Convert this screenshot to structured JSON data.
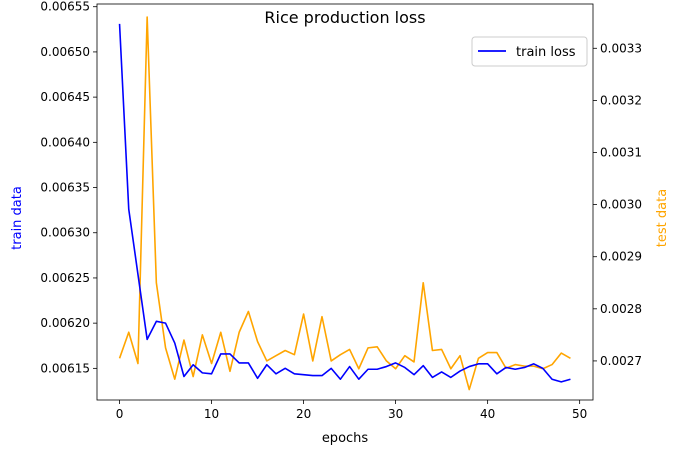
{
  "chart_data": {
    "type": "line",
    "title": "Rice production loss",
    "xlabel": "epochs",
    "ylabel_left": "train data",
    "ylabel_right": "test data",
    "xlim": [
      -2.45,
      51.45
    ],
    "ylim_left": [
      0.006115,
      0.006553
    ],
    "ylim_right": [
      0.002625,
      0.003385
    ],
    "x_ticks": [
      0,
      10,
      20,
      30,
      40,
      50
    ],
    "y_ticks_left": [
      "0.00615",
      "0.00620",
      "0.00625",
      "0.00630",
      "0.00635",
      "0.00640",
      "0.00645",
      "0.00650",
      "0.00655"
    ],
    "y_ticks_right": [
      "0.0027",
      "0.0028",
      "0.0029",
      "0.0030",
      "0.0031",
      "0.0032",
      "0.0033"
    ],
    "legend": {
      "position": "upper right",
      "entries": [
        {
          "label": "train loss",
          "color": "#0000ff"
        }
      ]
    },
    "colors": {
      "train": "#0000ff",
      "test": "#ffa500",
      "left_label": "#0000ff",
      "right_label": "#ffa500"
    },
    "x": [
      0,
      1,
      2,
      3,
      4,
      5,
      6,
      7,
      8,
      9,
      10,
      11,
      12,
      13,
      14,
      15,
      16,
      17,
      18,
      19,
      20,
      21,
      22,
      23,
      24,
      25,
      26,
      27,
      28,
      29,
      30,
      31,
      32,
      33,
      34,
      35,
      36,
      37,
      38,
      39,
      40,
      41,
      42,
      43,
      44,
      45,
      46,
      47,
      48,
      49
    ],
    "series": [
      {
        "name": "train loss",
        "axis": "left",
        "values": [
          0.006531,
          0.006326,
          0.006254,
          0.006182,
          0.006202,
          0.0062,
          0.006178,
          0.006141,
          0.006154,
          0.006145,
          0.006144,
          0.006166,
          0.006166,
          0.006156,
          0.006156,
          0.006139,
          0.006154,
          0.006144,
          0.00615,
          0.006144,
          0.006143,
          0.006142,
          0.006142,
          0.00615,
          0.006138,
          0.006152,
          0.006138,
          0.006149,
          0.006149,
          0.006152,
          0.006156,
          0.006151,
          0.006143,
          0.006153,
          0.00614,
          0.006146,
          0.00614,
          0.006147,
          0.006152,
          0.006155,
          0.006155,
          0.006144,
          0.006151,
          0.006149,
          0.006151,
          0.006155,
          0.00615,
          0.006138,
          0.006135,
          0.006138
        ]
      },
      {
        "axis": "right",
        "values": [
          0.002705,
          0.002755,
          0.002695,
          0.00336,
          0.00285,
          0.002725,
          0.002665,
          0.00274,
          0.00267,
          0.00275,
          0.002695,
          0.002755,
          0.00268,
          0.002755,
          0.002795,
          0.002737,
          0.0027,
          0.00271,
          0.00272,
          0.002712,
          0.00279,
          0.0027,
          0.002785,
          0.0027,
          0.002712,
          0.002722,
          0.002685,
          0.002725,
          0.002727,
          0.0027,
          0.002685,
          0.00271,
          0.002698,
          0.00285,
          0.00272,
          0.002722,
          0.002685,
          0.00271,
          0.002645,
          0.002705,
          0.002716,
          0.002716,
          0.002686,
          0.002693,
          0.00269,
          0.00269,
          0.002685,
          0.002693,
          0.002715,
          0.002705
        ]
      }
    ]
  }
}
